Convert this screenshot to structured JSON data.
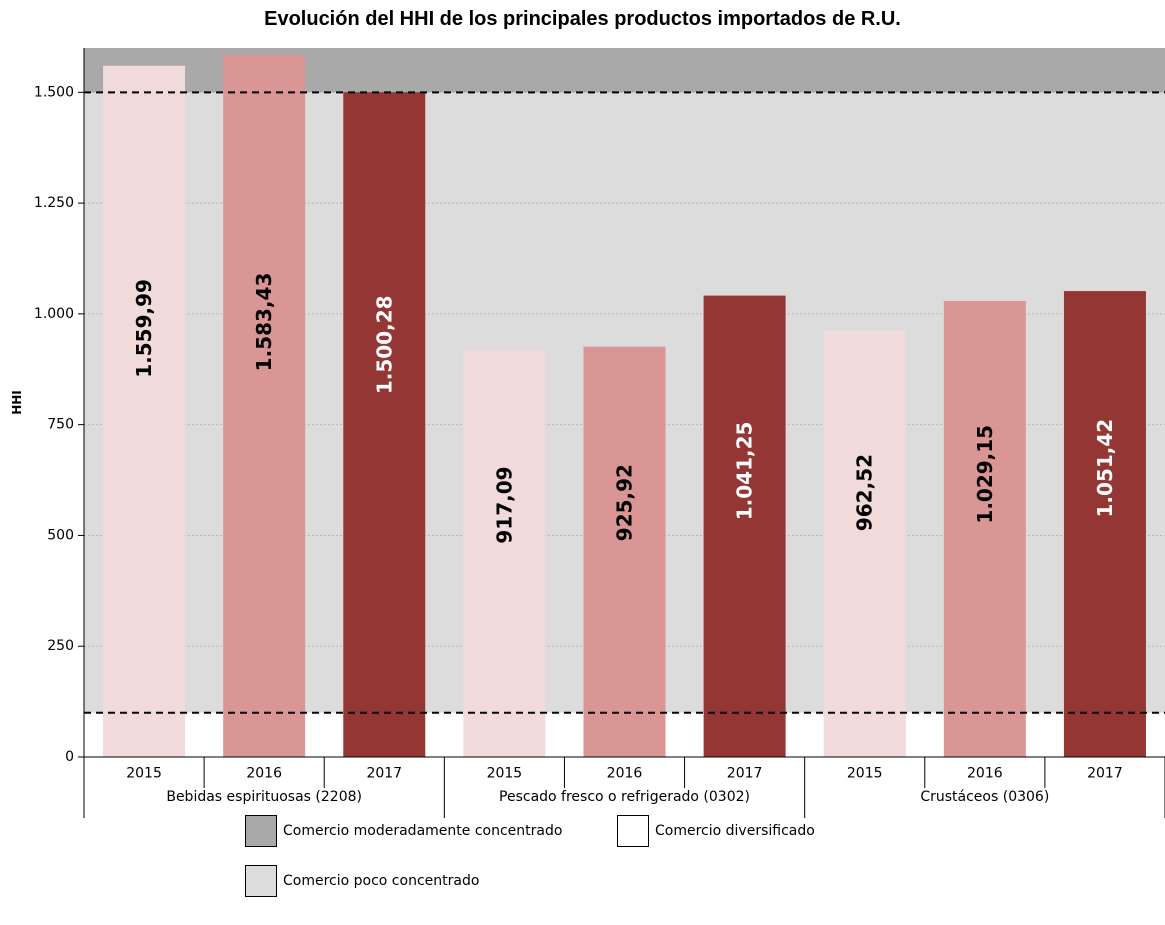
{
  "chart_data": {
    "type": "bar",
    "title": "Evolución del HHI de los principales productos importados de R.U.",
    "ylabel": "HHI",
    "xlabel": "",
    "ylim": [
      0,
      1600
    ],
    "y_ticks": [
      0,
      250,
      500,
      750,
      1000,
      1250,
      1500
    ],
    "y_tick_labels": [
      "0",
      "250",
      "500",
      "750",
      "1.000",
      "1.250",
      "1.500"
    ],
    "grid": true,
    "groups": [
      {
        "name": "Bebidas espirituosas (2208)",
        "bars": [
          {
            "year": "2015",
            "value": 1559.99,
            "label": "1.559,99"
          },
          {
            "year": "2016",
            "value": 1583.43,
            "label": "1.583,43"
          },
          {
            "year": "2017",
            "value": 1500.28,
            "label": "1.500,28"
          }
        ]
      },
      {
        "name": "Pescado fresco o refrigerado (0302)",
        "bars": [
          {
            "year": "2015",
            "value": 917.09,
            "label": "917,09"
          },
          {
            "year": "2016",
            "value": 925.92,
            "label": "925,92"
          },
          {
            "year": "2017",
            "value": 1041.25,
            "label": "1.041,25"
          }
        ]
      },
      {
        "name": "Crustáceos (0306)",
        "bars": [
          {
            "year": "2015",
            "value": 962.52,
            "label": "962,52"
          },
          {
            "year": "2016",
            "value": 1029.15,
            "label": "1.029,15"
          },
          {
            "year": "2017",
            "value": 1051.42,
            "label": "1.051,42"
          }
        ]
      }
    ],
    "year_colors": {
      "2015": "#f0dada",
      "2016": "#d99694",
      "2017": "#943634"
    },
    "label_colors": {
      "2015": "#000000",
      "2016": "#000000",
      "2017": "#ffffff"
    },
    "bands": [
      {
        "name": "Comercio diversificado",
        "from": 0,
        "to": 100,
        "color": "#ffffff"
      },
      {
        "name": "Comercio poco concentrado",
        "from": 100,
        "to": 1500,
        "color": "#dcdcdc"
      },
      {
        "name": "Comercio moderadamente concentrado",
        "from": 1500,
        "to": 1600,
        "color": "#a9a9a9"
      }
    ],
    "threshold_lines": [
      100,
      1500
    ],
    "legend": {
      "placement": "bottom",
      "items": [
        {
          "label": "Comercio moderadamente concentrado",
          "color": "#a9a9a9"
        },
        {
          "label": "Comercio diversificado",
          "color": "#ffffff"
        },
        {
          "label": "Comercio poco concentrado",
          "color": "#dcdcdc"
        }
      ]
    }
  }
}
